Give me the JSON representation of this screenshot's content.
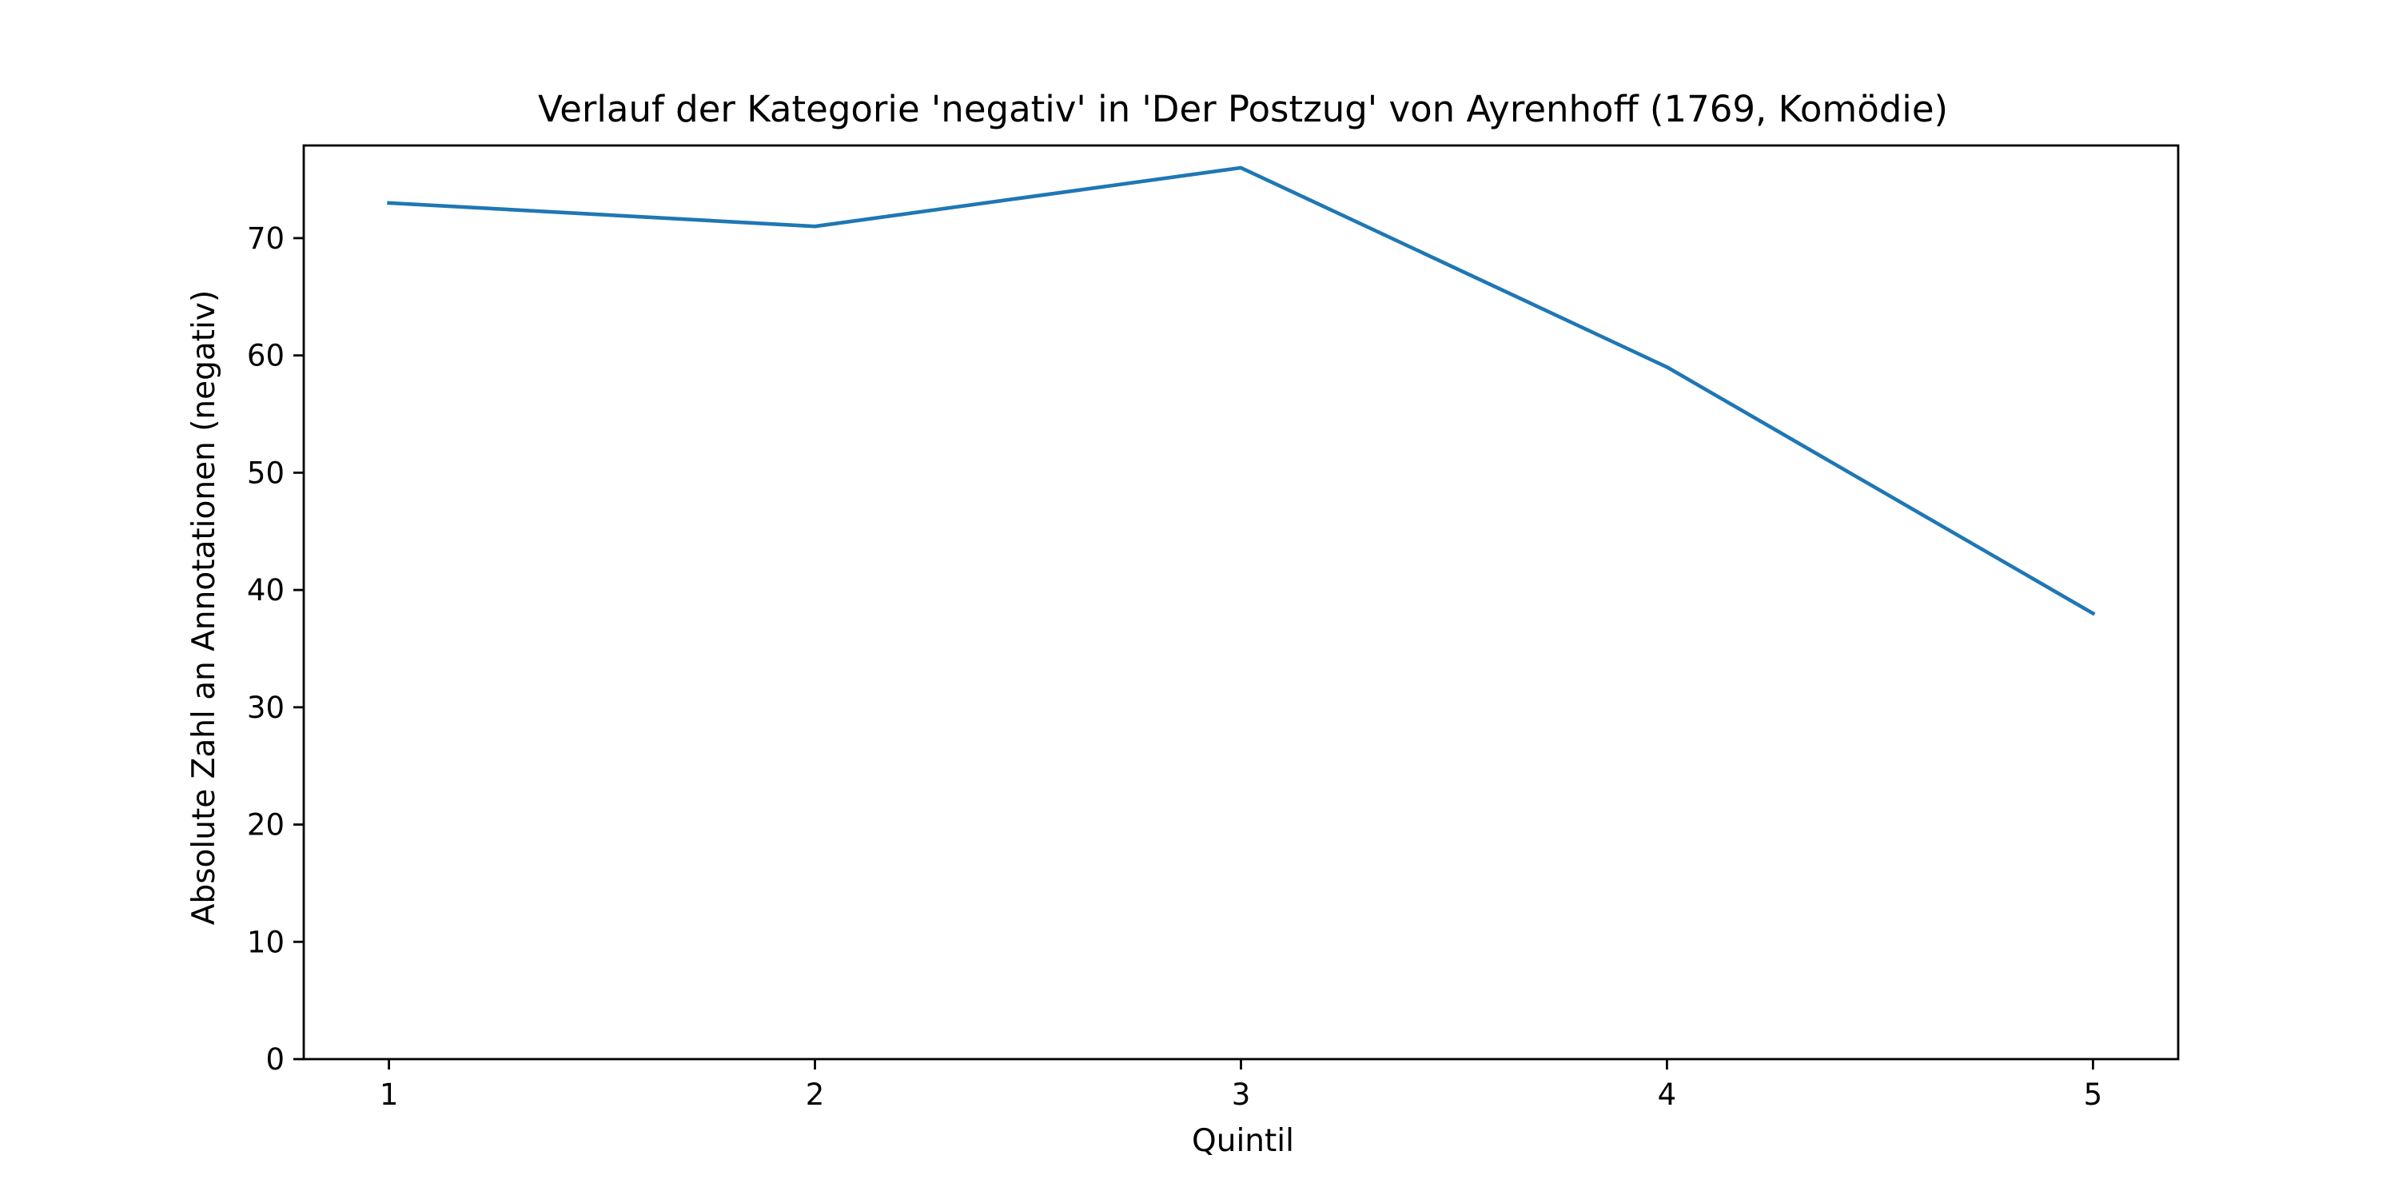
{
  "chart_data": {
    "type": "line",
    "title": "Verlauf der Kategorie 'negativ' in 'Der Postzug' von Ayrenhoff (1769, Komödie)",
    "xlabel": "Quintil",
    "ylabel": "Absolute Zahl an Annotationen (negativ)",
    "x": [
      1,
      2,
      3,
      4,
      5
    ],
    "xticks": [
      1,
      2,
      3,
      4,
      5
    ],
    "yticks": [
      0,
      10,
      20,
      30,
      40,
      50,
      60,
      70
    ],
    "xlim": [
      0.8,
      5.2
    ],
    "ylim": [
      0,
      77.9
    ],
    "grid": false,
    "series": [
      {
        "values": [
          73,
          71,
          76,
          59,
          38
        ],
        "color": "#1f77b4"
      }
    ]
  }
}
